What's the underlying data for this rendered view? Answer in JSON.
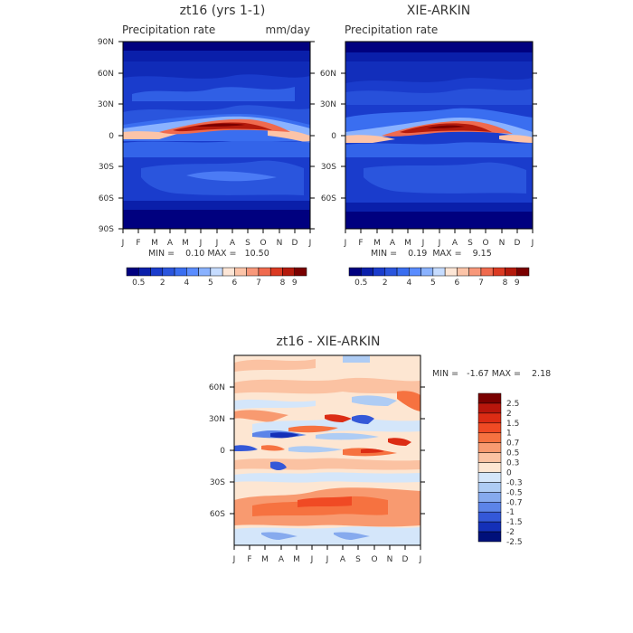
{
  "chart_data": [
    {
      "type": "heatmap",
      "title": "zt16 (yrs 1-1)",
      "subtitle_left": "Precipitation rate",
      "subtitle_right": "mm/day",
      "x_tick_labels": [
        "J",
        "F",
        "M",
        "A",
        "M",
        "J",
        "J",
        "A",
        "S",
        "O",
        "N",
        "D",
        "J"
      ],
      "y_tick_labels": [
        "90N",
        "60N",
        "30N",
        "0",
        "30S",
        "60S",
        "90S"
      ],
      "ylim": [
        -90,
        90
      ],
      "stats": "MIN =    0.10 MAX =   10.50",
      "colorbar": {
        "orientation": "horizontal",
        "labels": [
          "0.5",
          "2",
          "4",
          "5",
          "6",
          "7",
          "8",
          "9"
        ]
      }
    },
    {
      "type": "heatmap",
      "title": "XIE-ARKIN",
      "subtitle_left": "Precipitation rate",
      "x_tick_labels": [
        "J",
        "F",
        "M",
        "A",
        "M",
        "J",
        "J",
        "A",
        "S",
        "O",
        "N",
        "D",
        "J"
      ],
      "y_tick_labels": [
        "60N",
        "30N",
        "0",
        "30S",
        "60S"
      ],
      "stats": "MIN =    0.19  MAX =    9.15",
      "colorbar": {
        "orientation": "horizontal",
        "labels": [
          "0.5",
          "2",
          "4",
          "5",
          "6",
          "7",
          "8",
          "9"
        ]
      }
    },
    {
      "type": "heatmap",
      "title": "zt16 - XIE-ARKIN",
      "x_tick_labels": [
        "J",
        "F",
        "M",
        "A",
        "M",
        "J",
        "J",
        "A",
        "S",
        "O",
        "N",
        "D",
        "J"
      ],
      "y_tick_labels": [
        "60N",
        "30N",
        "0",
        "30S",
        "60S"
      ],
      "stats": "MIN =   -1.67 MAX =    2.18",
      "colorbar": {
        "orientation": "vertical",
        "labels": [
          "2.5",
          "2",
          "1.5",
          "1",
          "0.7",
          "0.5",
          "0.3",
          "0",
          "-0.3",
          "-0.5",
          "-0.7",
          "-1",
          "-1.5",
          "-2",
          "-2.5"
        ]
      }
    }
  ],
  "colors": {
    "precip": [
      "#00007f",
      "#0a1faa",
      "#1a3ccc",
      "#2a55dd",
      "#3a6ef0",
      "#5a8cff",
      "#8ab2ff",
      "#c6dcff",
      "#fde6d6",
      "#fcc4a8",
      "#f8987a",
      "#f06a4e",
      "#db3a22",
      "#b41a0c",
      "#7a0000"
    ],
    "diff": [
      "#7a0000",
      "#b8160c",
      "#dc2c14",
      "#f04a24",
      "#f67240",
      "#f89a70",
      "#fbc2a2",
      "#fde6d2",
      "#d4e6fa",
      "#aeccf4",
      "#86aaee",
      "#5c84e8",
      "#3458d8",
      "#1430b8",
      "#00107a"
    ]
  }
}
